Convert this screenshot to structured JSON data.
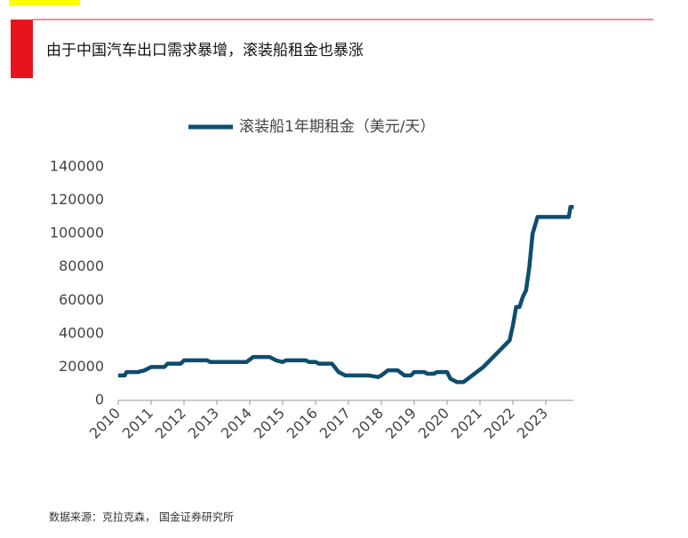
{
  "header": {
    "title": "由于中国汽车出口需求暴增，滚装船租金也暴涨"
  },
  "chart_data": {
    "type": "line",
    "x": [
      2010.0,
      2010.2,
      2010.25,
      2010.6,
      2010.8,
      2011.0,
      2011.4,
      2011.5,
      2011.9,
      2012.0,
      2012.7,
      2012.8,
      2013.9,
      2014.1,
      2014.6,
      2014.8,
      2015.0,
      2015.1,
      2015.7,
      2015.8,
      2016.0,
      2016.1,
      2016.5,
      2016.7,
      2016.9,
      2017.6,
      2017.9,
      2018.0,
      2018.2,
      2018.5,
      2018.7,
      2018.9,
      2019.0,
      2019.3,
      2019.4,
      2019.6,
      2019.7,
      2020.0,
      2020.1,
      2020.3,
      2020.5,
      2020.7,
      2020.9,
      2021.1,
      2021.4,
      2021.6,
      2021.9,
      2022.0,
      2022.1,
      2022.2,
      2022.3,
      2022.4,
      2022.5,
      2022.6,
      2022.75,
      2023.0,
      2023.7,
      2023.75,
      2023.85
    ],
    "series": [
      {
        "name": "滚装船1年期租金（美元/天）",
        "color": "#0e4d6e",
        "values": [
          15000,
          15000,
          17000,
          17000,
          18000,
          20000,
          20000,
          22000,
          22000,
          24000,
          24000,
          23000,
          23000,
          26000,
          26000,
          24000,
          23000,
          24000,
          24000,
          23000,
          23000,
          22000,
          22000,
          17000,
          15000,
          15000,
          14000,
          15000,
          18000,
          18000,
          15000,
          15000,
          17000,
          17000,
          16000,
          16000,
          17000,
          17000,
          13000,
          11000,
          11000,
          14000,
          17000,
          20000,
          26000,
          30000,
          36000,
          45000,
          56000,
          56000,
          62000,
          66000,
          80000,
          100000,
          110000,
          110000,
          110000,
          116000,
          116000
        ]
      }
    ],
    "xlim": [
      2010,
      2024
    ],
    "xticks": [
      2010,
      2011,
      2012,
      2013,
      2014,
      2015,
      2016,
      2017,
      2018,
      2019,
      2020,
      2021,
      2022,
      2023
    ],
    "ylim": [
      0,
      140000
    ],
    "yticks": [
      0,
      20000,
      40000,
      60000,
      80000,
      100000,
      120000,
      140000
    ],
    "legend": "top"
  },
  "footer": {
    "source": "数据来源：克拉克森， 国金证券研究所"
  }
}
